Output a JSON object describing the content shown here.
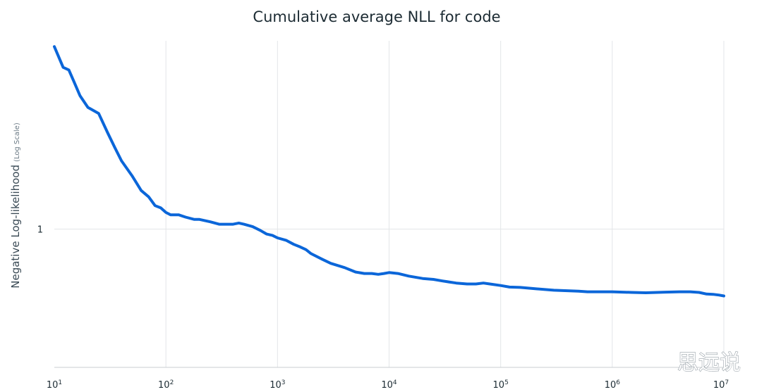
{
  "chart_data": {
    "type": "line",
    "title": "Cumulative average NLL for code",
    "ylabel": "Negative Log-likelihood",
    "ylabel_note": "(Log Scale)",
    "xlabel": "",
    "xscale": "log",
    "yscale": "log",
    "xlim": [
      10,
      10000000
    ],
    "ylim": [
      0.57,
      2.15
    ],
    "grid": "vertical at decades, horizontal at 1",
    "legend": "none",
    "series_color": "#0b66d9",
    "x_ticks": [
      {
        "base": "10",
        "exp": "1",
        "value": 10
      },
      {
        "base": "10",
        "exp": "2",
        "value": 100
      },
      {
        "base": "10",
        "exp": "3",
        "value": 1000
      },
      {
        "base": "10",
        "exp": "4",
        "value": 10000
      },
      {
        "base": "10",
        "exp": "5",
        "value": 100000
      },
      {
        "base": "10",
        "exp": "6",
        "value": 1000000
      },
      {
        "base": "10",
        "exp": "7",
        "value": 10000000
      }
    ],
    "y_ticks": [
      {
        "label": "1",
        "value": 1
      }
    ],
    "series": [
      {
        "x": [
          10,
          12,
          13.5,
          15,
          17,
          20,
          25,
          30,
          35,
          40,
          50,
          60,
          70,
          80,
          90,
          100,
          110,
          130,
          150,
          180,
          200,
          250,
          300,
          400,
          450,
          500,
          600,
          700,
          800,
          900,
          1000,
          1200,
          1400,
          1600,
          1800,
          2000,
          2500,
          3000,
          4000,
          5000,
          6000,
          7000,
          8000,
          9000,
          10000,
          12000,
          15000,
          20000,
          25000,
          30000,
          40000,
          50000,
          60000,
          70000,
          80000,
          100000,
          120000,
          150000,
          200000,
          300000,
          500000,
          600000,
          700000,
          1000000,
          1500000,
          2000000,
          3000000,
          4000000,
          5000000,
          6000000,
          7000000,
          8000000,
          9000000,
          10000000
        ],
        "y": [
          2.1,
          1.93,
          1.91,
          1.82,
          1.72,
          1.64,
          1.6,
          1.48,
          1.39,
          1.32,
          1.24,
          1.17,
          1.14,
          1.1,
          1.09,
          1.07,
          1.06,
          1.06,
          1.05,
          1.04,
          1.04,
          1.03,
          1.02,
          1.02,
          1.025,
          1.02,
          1.01,
          0.995,
          0.98,
          0.975,
          0.965,
          0.955,
          0.94,
          0.93,
          0.92,
          0.905,
          0.885,
          0.87,
          0.855,
          0.84,
          0.835,
          0.835,
          0.832,
          0.835,
          0.838,
          0.835,
          0.826,
          0.818,
          0.815,
          0.81,
          0.803,
          0.8,
          0.8,
          0.803,
          0.8,
          0.795,
          0.79,
          0.789,
          0.785,
          0.78,
          0.777,
          0.775,
          0.775,
          0.775,
          0.773,
          0.772,
          0.774,
          0.775,
          0.775,
          0.773,
          0.768,
          0.767,
          0.765,
          0.762
        ]
      }
    ]
  },
  "watermark": "思远说"
}
